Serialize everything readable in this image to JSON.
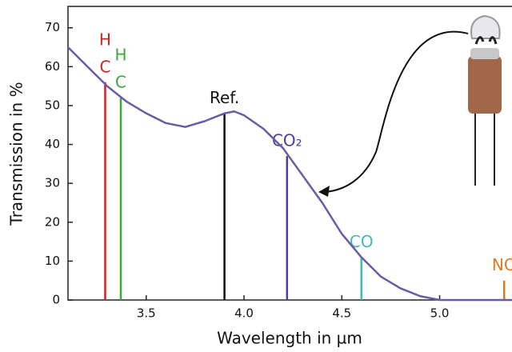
{
  "chart_data": {
    "type": "line",
    "x_label": "Wavelength in µm",
    "y_label": "Transmission in %",
    "xlim": [
      3.1,
      5.37
    ],
    "ylim": [
      0,
      75.5
    ],
    "xticks": [
      3.5,
      {
        "value": 4,
        "label": "4.0"
      },
      4.5,
      {
        "value": 5,
        "label": "5.0"
      }
    ],
    "yticks": [
      0,
      10,
      20,
      30,
      40,
      50,
      60,
      70
    ],
    "x": [
      3.1,
      3.2,
      3.3,
      3.4,
      3.5,
      3.6,
      3.7,
      3.8,
      3.9,
      3.95,
      4.0,
      4.1,
      4.2,
      4.3,
      4.4,
      4.5,
      4.6,
      4.7,
      4.8,
      4.9,
      5.0,
      5.1,
      5.2,
      5.37
    ],
    "series": [
      {
        "color": "#6a5aa8",
        "values": [
          65,
          60,
          55,
          51,
          48,
          45.5,
          44.5,
          46,
          48,
          48.5,
          47.5,
          44,
          39,
          32,
          25,
          17,
          11,
          6,
          3,
          1,
          0,
          0,
          0,
          0
        ]
      }
    ],
    "markers": [
      {
        "label": [
          "H",
          "C"
        ],
        "x": 3.29,
        "value": 56,
        "color": "#d42020"
      },
      {
        "label": [
          "H",
          "C"
        ],
        "x": 3.37,
        "value": 52,
        "color": "#3aa83a"
      },
      {
        "label": [
          "Ref."
        ],
        "x": 3.9,
        "value": 48,
        "color": "#111111"
      },
      {
        "label": [
          "CO₂"
        ],
        "x": 4.22,
        "value": 37,
        "color": "#4a3fa0"
      },
      {
        "label": [
          "CO"
        ],
        "x": 4.6,
        "value": 11,
        "color": "#3fbcb8"
      },
      {
        "label": [
          "NO"
        ],
        "x": 5.33,
        "value": 5,
        "color": "#e07a20"
      }
    ]
  }
}
